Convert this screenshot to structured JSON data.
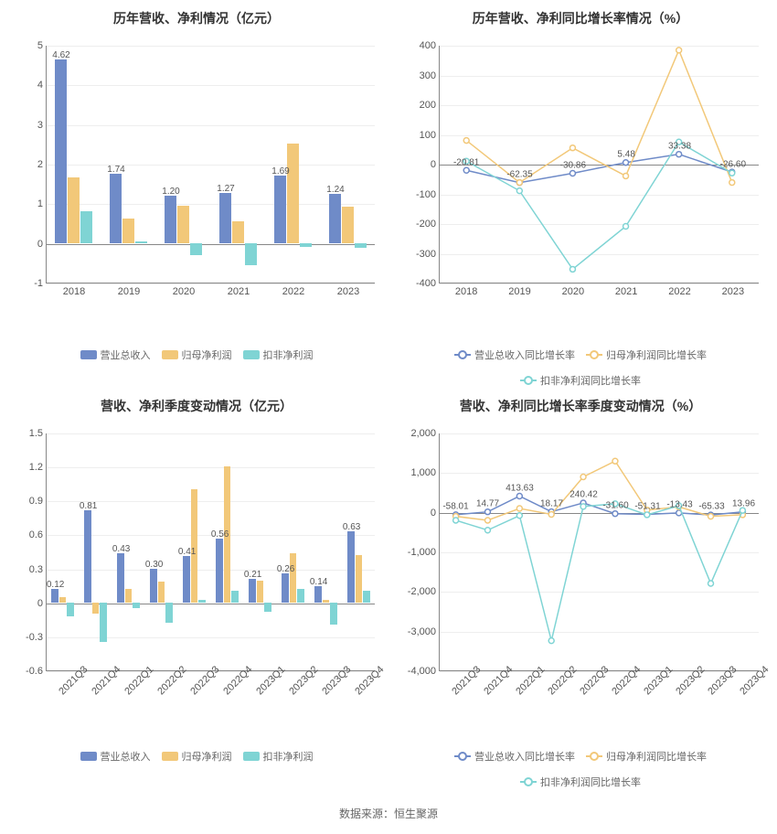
{
  "colors": {
    "series1": "#6f8bc8",
    "series2": "#f2c879",
    "series3": "#7fd4d4",
    "grid": "#eeeeee",
    "axis": "#888888",
    "text": "#555555",
    "bg": "#ffffff"
  },
  "legend_bar": {
    "s1": "营业总收入",
    "s2": "归母净利润",
    "s3": "扣非净利润"
  },
  "legend_line": {
    "s1": "营业总收入同比增长率",
    "s2": "归母净利润同比增长率",
    "s3": "扣非净利润同比增长率"
  },
  "chart_tl": {
    "type": "bar",
    "title": "历年营收、净利情况（亿元）",
    "categories": [
      "2018",
      "2019",
      "2020",
      "2021",
      "2022",
      "2023"
    ],
    "labels": [
      "4.62",
      "1.74",
      "1.20",
      "1.27",
      "1.69",
      "1.24"
    ],
    "series": [
      {
        "name": "营业总收入",
        "values": [
          4.62,
          1.74,
          1.2,
          1.27,
          1.69,
          1.24
        ]
      },
      {
        "name": "归母净利润",
        "values": [
          1.65,
          0.62,
          0.95,
          0.55,
          2.5,
          0.92
        ]
      },
      {
        "name": "扣非净利润",
        "values": [
          0.8,
          0.05,
          -0.3,
          -0.55,
          -0.1,
          -0.12
        ]
      }
    ],
    "ylim": [
      -1,
      5
    ],
    "ystep": 1,
    "bar_group_width": 0.7,
    "label_fontsize": 10
  },
  "chart_tr": {
    "type": "line",
    "title": "历年营收、净利同比增长率情况（%）",
    "categories": [
      "2018",
      "2019",
      "2020",
      "2021",
      "2022",
      "2023"
    ],
    "labels": [
      "-20.81",
      "-62.35",
      "-30.86",
      "5.48",
      "33.38",
      "-26.60"
    ],
    "series": [
      {
        "name": "营业总收入同比增长率",
        "values": [
          -20.81,
          -62.35,
          -30.86,
          5.48,
          33.38,
          -26.6
        ]
      },
      {
        "name": "归母净利润同比增长率",
        "values": [
          80,
          -62,
          55,
          -40,
          385,
          -62
        ]
      },
      {
        "name": "扣非净利润同比增长率",
        "values": [
          10,
          -90,
          -355,
          -210,
          75,
          -30
        ]
      }
    ],
    "ylim": [
      -400,
      400
    ],
    "ystep": 100,
    "marker": "circle",
    "line_width": 1.5
  },
  "chart_bl": {
    "type": "bar",
    "title": "营收、净利季度变动情况（亿元）",
    "categories": [
      "2021Q3",
      "2021Q4",
      "2022Q1",
      "2022Q2",
      "2022Q3",
      "2022Q4",
      "2023Q1",
      "2023Q2",
      "2023Q3",
      "2023Q4"
    ],
    "labels": [
      "0.12",
      "0.81",
      "0.43",
      "0.30",
      "0.41",
      "0.56",
      "0.21",
      "0.26",
      "0.14",
      "0.63"
    ],
    "series": [
      {
        "name": "营业总收入",
        "values": [
          0.12,
          0.81,
          0.43,
          0.3,
          0.41,
          0.56,
          0.21,
          0.26,
          0.14,
          0.63
        ]
      },
      {
        "name": "归母净利润",
        "values": [
          0.05,
          -0.1,
          0.12,
          0.18,
          1.0,
          1.2,
          0.19,
          0.43,
          0.02,
          0.42
        ]
      },
      {
        "name": "扣非净利润",
        "values": [
          -0.12,
          -0.35,
          -0.05,
          -0.18,
          0.02,
          0.1,
          -0.08,
          0.12,
          -0.2,
          0.1
        ]
      }
    ],
    "ylim": [
      -0.6,
      1.5
    ],
    "ystep": 0.3,
    "bar_group_width": 0.7,
    "rotate_x": true
  },
  "chart_br": {
    "type": "line",
    "title": "营收、净利同比增长率季度变动情况（%）",
    "categories": [
      "2021Q3",
      "2021Q4",
      "2022Q1",
      "2022Q2",
      "2022Q3",
      "2022Q4",
      "2023Q1",
      "2023Q2",
      "2023Q3",
      "2023Q4"
    ],
    "labels": [
      "-58.01",
      "14.77",
      "413.63",
      "18.17",
      "240.42",
      "-31.60",
      "-51.31",
      "-13.43",
      "-65.33",
      "13.96"
    ],
    "series": [
      {
        "name": "营业总收入同比增长率",
        "values": [
          -58.01,
          14.77,
          413.63,
          18.17,
          240.42,
          -31.6,
          -51.31,
          -13.43,
          -65.33,
          13.96
        ]
      },
      {
        "name": "归母净利润同比增长率",
        "values": [
          -100,
          -200,
          100,
          -50,
          900,
          1300,
          60,
          140,
          -100,
          -60
        ]
      },
      {
        "name": "扣非净利润同比增长率",
        "values": [
          -200,
          -450,
          -80,
          -3250,
          150,
          220,
          -60,
          170,
          -1800,
          50
        ]
      }
    ],
    "ylim": [
      -4000,
      2000
    ],
    "ystep": 1000,
    "marker": "circle",
    "rotate_x": true
  },
  "footer": "数据来源：恒生聚源"
}
